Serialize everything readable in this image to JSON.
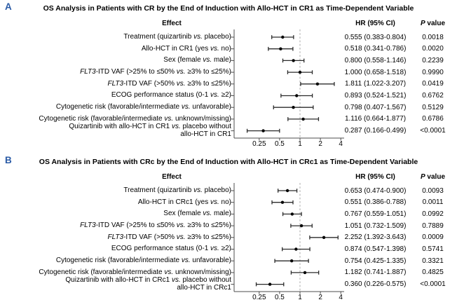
{
  "colors": {
    "panel_letter": "#2b5ba6",
    "reference_line": "#aaaaaa",
    "error_bar": "#2b2b2b",
    "marker": "#000000",
    "axis": "#4d4d4d"
  },
  "chart_data": [
    {
      "type": "forest",
      "letter": "A",
      "title": "OS Analysis in Patients with CR by the End of Induction with Allo-HCT in CR1 as Time-Dependent Variable",
      "headers": {
        "effect": "Effect",
        "hr": "HR (95% CI)",
        "p": "P value"
      },
      "xscale": "log2",
      "xlim": [
        0.107,
        4.5
      ],
      "x_ticks": [
        0.25,
        0.5,
        1,
        2,
        4
      ],
      "x_tick_labels": [
        "0.25",
        "0.5",
        "1",
        "2",
        "4"
      ],
      "ref_line": 1,
      "rows": [
        {
          "label_lines": [
            "Treatment (quizartinib vs. placebo)"
          ],
          "hr": 0.555,
          "ci_low": 0.383,
          "ci_high": 0.804,
          "hr_text": "0.555 (0.383-0.804)",
          "p_text": "0.0018"
        },
        {
          "label_lines": [
            "Allo-HCT in CR1 (yes vs. no)"
          ],
          "hr": 0.518,
          "ci_low": 0.341,
          "ci_high": 0.786,
          "hr_text": "0.518 (0.341-0.786)",
          "p_text": "0.0020"
        },
        {
          "label_lines": [
            "Sex (female vs. male)"
          ],
          "hr": 0.8,
          "ci_low": 0.558,
          "ci_high": 1.146,
          "hr_text": "0.800 (0.558-1.146)",
          "p_text": "0.2239"
        },
        {
          "label_lines": [
            "FLT3-ITD VAF (>25% to ≤50% vs. ≥3% to ≤25%)"
          ],
          "hr": 1.0,
          "ci_low": 0.658,
          "ci_high": 1.518,
          "hr_text": "1.000 (0.658-1.518)",
          "p_text": "0.9990"
        },
        {
          "label_lines": [
            "FLT3-ITD VAF (>50% vs. ≥3% to ≤25%)"
          ],
          "hr": 1.811,
          "ci_low": 1.022,
          "ci_high": 3.207,
          "hr_text": "1.811 (1.022-3.207)",
          "p_text": "0.0419"
        },
        {
          "label_lines": [
            "ECOG performance status (0-1 vs. ≥2)"
          ],
          "hr": 0.893,
          "ci_low": 0.524,
          "ci_high": 1.521,
          "hr_text": "0.893 (0.524-1.521)",
          "p_text": "0.6762"
        },
        {
          "label_lines": [
            "Cytogenetic risk (favorable/intermediate vs. unfavorable)"
          ],
          "hr": 0.798,
          "ci_low": 0.407,
          "ci_high": 1.567,
          "hr_text": "0.798 (0.407-1.567)",
          "p_text": "0.5129"
        },
        {
          "label_lines": [
            "Cytogenetic risk (favorable/intermediate vs. unknown/missing)"
          ],
          "hr": 1.116,
          "ci_low": 0.664,
          "ci_high": 1.877,
          "hr_text": "1.116 (0.664-1.877)",
          "p_text": "0.6786"
        },
        {
          "label_lines": [
            "Quizartinib with allo-HCT in CR1 vs. placebo without",
            "allo-HCT in CR1"
          ],
          "hr": 0.287,
          "ci_low": 0.166,
          "ci_high": 0.499,
          "hr_text": "0.287 (0.166-0.499)",
          "p_text": "<0.0001"
        }
      ]
    },
    {
      "type": "forest",
      "letter": "B",
      "title": "OS Analysis in Patients with CRc by the End of Induction with Allo-HCT in CRc1 as Time-Dependent Variable",
      "headers": {
        "effect": "Effect",
        "hr": "HR (95% CI)",
        "p": "P value"
      },
      "xscale": "log2",
      "xlim": [
        0.107,
        4.5
      ],
      "x_ticks": [
        0.25,
        0.5,
        1,
        2,
        4
      ],
      "x_tick_labels": [
        "0.25",
        "0.5",
        "1",
        "2",
        "4"
      ],
      "ref_line": 1,
      "rows": [
        {
          "label_lines": [
            "Treatment (quizartinib vs. placebo)"
          ],
          "hr": 0.653,
          "ci_low": 0.474,
          "ci_high": 0.9,
          "hr_text": "0.653 (0.474-0.900)",
          "p_text": "0.0093"
        },
        {
          "label_lines": [
            "Allo-HCT in CRc1 (yes vs. no)"
          ],
          "hr": 0.551,
          "ci_low": 0.386,
          "ci_high": 0.788,
          "hr_text": "0.551 (0.386-0.788)",
          "p_text": "0.0011"
        },
        {
          "label_lines": [
            "Sex (female vs. male)"
          ],
          "hr": 0.767,
          "ci_low": 0.559,
          "ci_high": 1.051,
          "hr_text": "0.767 (0.559-1.051)",
          "p_text": "0.0992"
        },
        {
          "label_lines": [
            "FLT3-ITD VAF (>25% to ≤50% vs. ≥3% to ≤25%)"
          ],
          "hr": 1.051,
          "ci_low": 0.732,
          "ci_high": 1.509,
          "hr_text": "1.051 (0.732-1.509)",
          "p_text": "0.7889"
        },
        {
          "label_lines": [
            "FLT3-ITD VAF (>50% vs. ≥3% to ≤25%)"
          ],
          "hr": 2.252,
          "ci_low": 1.392,
          "ci_high": 3.643,
          "hr_text": "2.252 (1.392-3.643)",
          "p_text": "0.0009"
        },
        {
          "label_lines": [
            "ECOG performance status (0-1 vs. ≥2)"
          ],
          "hr": 0.874,
          "ci_low": 0.547,
          "ci_high": 1.398,
          "hr_text": "0.874 (0.547-1.398)",
          "p_text": "0.5741"
        },
        {
          "label_lines": [
            "Cytogenetic risk (favorable/intermediate vs. unfavorable)"
          ],
          "hr": 0.754,
          "ci_low": 0.425,
          "ci_high": 1.335,
          "hr_text": "0.754 (0.425-1.335)",
          "p_text": "0.3321"
        },
        {
          "label_lines": [
            "Cytogenetic risk (favorable/intermediate vs. unknown/missing)"
          ],
          "hr": 1.182,
          "ci_low": 0.741,
          "ci_high": 1.887,
          "hr_text": "1.182 (0.741-1.887)",
          "p_text": "0.4825"
        },
        {
          "label_lines": [
            "Quizartinib with allo-HCT in CRc1 vs. placebo without",
            "allo-HCT in CRc1"
          ],
          "hr": 0.36,
          "ci_low": 0.226,
          "ci_high": 0.575,
          "hr_text": "0.360 (0.226-0.575)",
          "p_text": "<0.0001"
        }
      ]
    }
  ]
}
